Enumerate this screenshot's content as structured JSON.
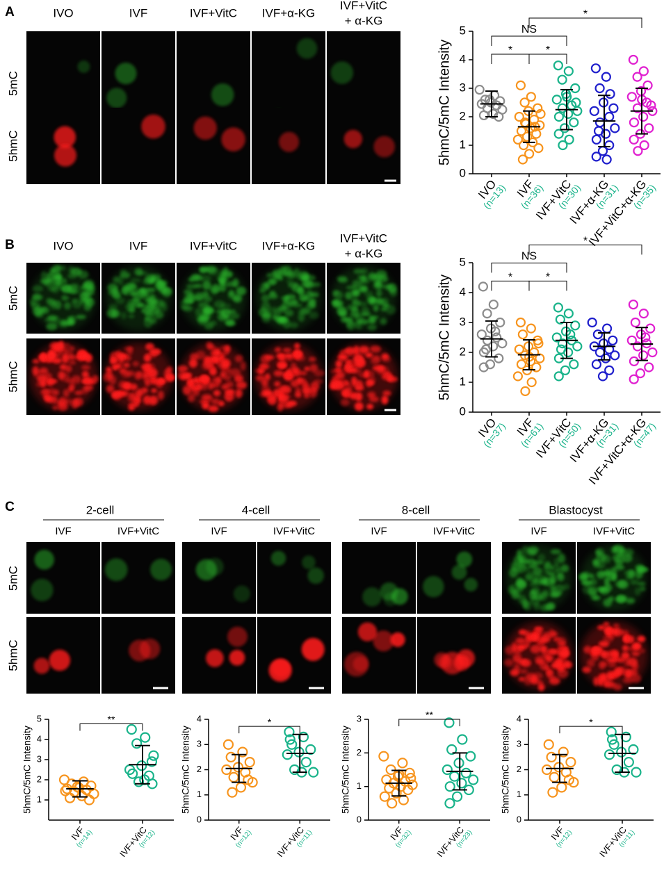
{
  "figure": {
    "panel_letters": [
      "A",
      "B",
      "C"
    ],
    "row_labels": [
      "5mC",
      "5hmC"
    ],
    "columns_ab": [
      "IVO",
      "IVF",
      "IVF+VitC",
      "IVF+α-KG",
      [
        "IVF+VitC",
        "+ α-KG"
      ]
    ],
    "stages": [
      "2-cell",
      "4-cell",
      "8-cell",
      "Blastocyst"
    ],
    "stage_groups": [
      "IVF",
      "IVF+VitC"
    ]
  },
  "chart_data": [
    {
      "type": "dotplot",
      "y_label": "5hmC/5mC Intensity",
      "ylim": [
        0,
        5
      ],
      "yticks": [
        0,
        1,
        2,
        3,
        4,
        5
      ],
      "groups": [
        {
          "name": "IVO",
          "n_label": "(n=13)",
          "color": "#8c8c8c",
          "mean": 2.45,
          "sd": 0.45,
          "values": [
            2.95,
            2.75,
            2.6,
            2.55,
            2.5,
            2.45,
            2.4,
            2.3,
            2.25,
            2.1,
            2.05,
            2.0,
            2.6
          ]
        },
        {
          "name": "IVF",
          "n_label": "(n=36)",
          "color": "#f7941d",
          "mean": 1.65,
          "sd": 0.55,
          "values": [
            3.1,
            2.7,
            2.5,
            2.3,
            2.2,
            2.0,
            1.9,
            1.8,
            1.7,
            1.6,
            1.5,
            1.4,
            1.3,
            1.2,
            1.1,
            1.0,
            0.9,
            0.7,
            0.5,
            1.65,
            1.75,
            2.1
          ]
        },
        {
          "name": "IVF+VitC",
          "n_label": "(n=30)",
          "color": "#19b38a",
          "mean": 2.25,
          "sd": 0.7,
          "values": [
            3.8,
            3.6,
            3.3,
            3.0,
            2.8,
            2.6,
            2.4,
            2.3,
            2.2,
            2.1,
            2.0,
            1.8,
            1.6,
            1.4,
            1.2,
            1.0,
            2.5,
            2.7
          ]
        },
        {
          "name": "IVF+α-KG",
          "n_label": "(n=31)",
          "color": "#1f1fcc",
          "mean": 1.85,
          "sd": 0.9,
          "values": [
            3.7,
            3.4,
            3.0,
            2.8,
            2.5,
            2.2,
            2.0,
            1.8,
            1.6,
            1.4,
            1.2,
            1.0,
            0.8,
            0.6,
            0.5,
            1.5,
            2.3
          ]
        },
        {
          "name": "IVF+VitC+α-KG",
          "n_label": "(n=35)",
          "color": "#e020d0",
          "mean": 2.2,
          "sd": 0.8,
          "values": [
            4.0,
            3.6,
            3.4,
            3.1,
            2.9,
            2.7,
            2.5,
            2.3,
            2.2,
            2.0,
            1.8,
            1.6,
            1.4,
            1.2,
            1.0,
            0.8,
            2.4,
            2.6
          ]
        }
      ],
      "brackets": [
        {
          "from": 0,
          "to": 1,
          "label": "*"
        },
        {
          "from": 1,
          "to": 2,
          "label": "*"
        },
        {
          "from": 0,
          "to": 2,
          "label": "NS"
        },
        {
          "from": 1,
          "to": 4,
          "label": "*"
        }
      ]
    },
    {
      "type": "dotplot",
      "y_label": "5hmC/5mC Intensity",
      "ylim": [
        0,
        5
      ],
      "yticks": [
        0,
        1,
        2,
        3,
        4,
        5
      ],
      "groups": [
        {
          "name": "IVO",
          "n_label": "(n=37)",
          "color": "#8c8c8c",
          "mean": 2.45,
          "sd": 0.6,
          "values": [
            4.2,
            3.6,
            3.3,
            3.0,
            2.8,
            2.6,
            2.5,
            2.4,
            2.3,
            2.2,
            2.0,
            1.8,
            1.6,
            1.5,
            2.7,
            2.1
          ]
        },
        {
          "name": "IVF",
          "n_label": "(n=61)",
          "color": "#f7941d",
          "mean": 1.92,
          "sd": 0.5,
          "values": [
            3.0,
            2.8,
            2.6,
            2.4,
            2.2,
            2.1,
            2.0,
            1.9,
            1.8,
            1.7,
            1.6,
            1.5,
            1.4,
            1.2,
            1.0,
            0.7,
            2.3,
            1.85
          ]
        },
        {
          "name": "IVF+VitC",
          "n_label": "(n=50)",
          "color": "#19b38a",
          "mean": 2.4,
          "sd": 0.6,
          "values": [
            3.5,
            3.3,
            3.1,
            2.9,
            2.7,
            2.5,
            2.4,
            2.3,
            2.2,
            2.0,
            1.8,
            1.6,
            1.4,
            1.2,
            2.6,
            2.1
          ]
        },
        {
          "name": "IVF+α-KG",
          "n_label": "(n=31)",
          "color": "#1f1fcc",
          "mean": 2.2,
          "sd": 0.45,
          "values": [
            3.0,
            2.8,
            2.6,
            2.4,
            2.3,
            2.2,
            2.1,
            2.0,
            1.9,
            1.8,
            1.6,
            1.4,
            1.2
          ]
        },
        {
          "name": "IVF+VitC+α-KG",
          "n_label": "(n=47)",
          "color": "#e020d0",
          "mean": 2.28,
          "sd": 0.55,
          "values": [
            3.6,
            3.3,
            3.0,
            2.8,
            2.6,
            2.4,
            2.3,
            2.2,
            2.0,
            1.9,
            1.7,
            1.5,
            1.3,
            1.1,
            2.5
          ]
        }
      ],
      "brackets": [
        {
          "from": 0,
          "to": 1,
          "label": "*"
        },
        {
          "from": 1,
          "to": 2,
          "label": "*"
        },
        {
          "from": 0,
          "to": 2,
          "label": "NS"
        },
        {
          "from": 1,
          "to": 4,
          "label": "*"
        }
      ]
    },
    {
      "type": "dotplot",
      "y_label": "5hmC/5mC Intensity",
      "ylim": [
        0,
        5
      ],
      "yticks": [
        1,
        2,
        3,
        4,
        5
      ],
      "groups": [
        {
          "name": "IVF",
          "n_label": "(n=14)",
          "color": "#f7941d",
          "mean": 1.55,
          "sd": 0.4,
          "values": [
            2.0,
            1.9,
            1.8,
            1.7,
            1.6,
            1.55,
            1.5,
            1.4,
            1.3,
            1.2,
            1.1,
            1.0,
            1.65,
            1.45
          ]
        },
        {
          "name": "IVF+VitC",
          "n_label": "(n=12)",
          "color": "#19b38a",
          "mean": 2.75,
          "sd": 0.95,
          "values": [
            4.5,
            4.1,
            3.8,
            3.2,
            2.7,
            2.5,
            2.2,
            1.9,
            1.8,
            2.0,
            2.3,
            2.9
          ]
        }
      ],
      "brackets": [
        {
          "from": 0,
          "to": 1,
          "label": "**"
        }
      ]
    },
    {
      "type": "dotplot",
      "y_label": "5hmC/5mC Intensity",
      "ylim": [
        0,
        4
      ],
      "yticks": [
        0,
        1,
        2,
        3,
        4
      ],
      "groups": [
        {
          "name": "IVF",
          "n_label": "(n=12)",
          "color": "#f7941d",
          "mean": 2.05,
          "sd": 0.55,
          "values": [
            3.0,
            2.7,
            2.5,
            2.3,
            2.1,
            2.0,
            1.9,
            1.7,
            1.5,
            1.3,
            1.1,
            1.6
          ]
        },
        {
          "name": "IVF+VitC",
          "n_label": "(n=11)",
          "color": "#19b38a",
          "mean": 2.65,
          "sd": 0.75,
          "values": [
            3.5,
            3.3,
            3.0,
            2.8,
            2.7,
            2.6,
            2.3,
            2.0,
            1.9,
            1.9,
            3.2
          ]
        }
      ],
      "brackets": [
        {
          "from": 0,
          "to": 1,
          "label": "*"
        }
      ]
    },
    {
      "type": "dotplot",
      "y_label": "5hmC/5mC Intensity",
      "ylim": [
        0,
        3
      ],
      "yticks": [
        0,
        1,
        2,
        3
      ],
      "groups": [
        {
          "name": "IVF",
          "n_label": "(n=32)",
          "color": "#f7941d",
          "mean": 1.1,
          "sd": 0.38,
          "values": [
            1.9,
            1.7,
            1.5,
            1.4,
            1.3,
            1.2,
            1.15,
            1.1,
            1.05,
            1.0,
            0.95,
            0.9,
            0.8,
            0.7,
            0.6,
            0.5,
            1.25,
            1.35
          ]
        },
        {
          "name": "IVF+VitC",
          "n_label": "(n=23)",
          "color": "#19b38a",
          "mean": 1.45,
          "sd": 0.55,
          "values": [
            2.9,
            2.4,
            2.1,
            1.9,
            1.7,
            1.5,
            1.4,
            1.3,
            1.2,
            1.1,
            1.0,
            0.9,
            0.7,
            0.5
          ]
        }
      ],
      "brackets": [
        {
          "from": 0,
          "to": 1,
          "label": "**"
        }
      ]
    },
    {
      "type": "dotplot",
      "y_label": "5hmC/5mC Intensity",
      "ylim": [
        0,
        4
      ],
      "yticks": [
        0,
        1,
        2,
        3,
        4
      ],
      "groups": [
        {
          "name": "IVF",
          "n_label": "(n=12)",
          "color": "#f7941d",
          "mean": 2.05,
          "sd": 0.55,
          "values": [
            3.0,
            2.7,
            2.5,
            2.3,
            2.1,
            2.0,
            1.9,
            1.7,
            1.5,
            1.3,
            1.1,
            1.6
          ]
        },
        {
          "name": "IVF+VitC",
          "n_label": "(n=11)",
          "color": "#19b38a",
          "mean": 2.65,
          "sd": 0.75,
          "values": [
            3.5,
            3.3,
            3.0,
            2.8,
            2.7,
            2.6,
            2.3,
            2.0,
            1.9,
            1.9,
            3.2
          ]
        }
      ],
      "brackets": [
        {
          "from": 0,
          "to": 1,
          "label": "*"
        }
      ]
    }
  ]
}
